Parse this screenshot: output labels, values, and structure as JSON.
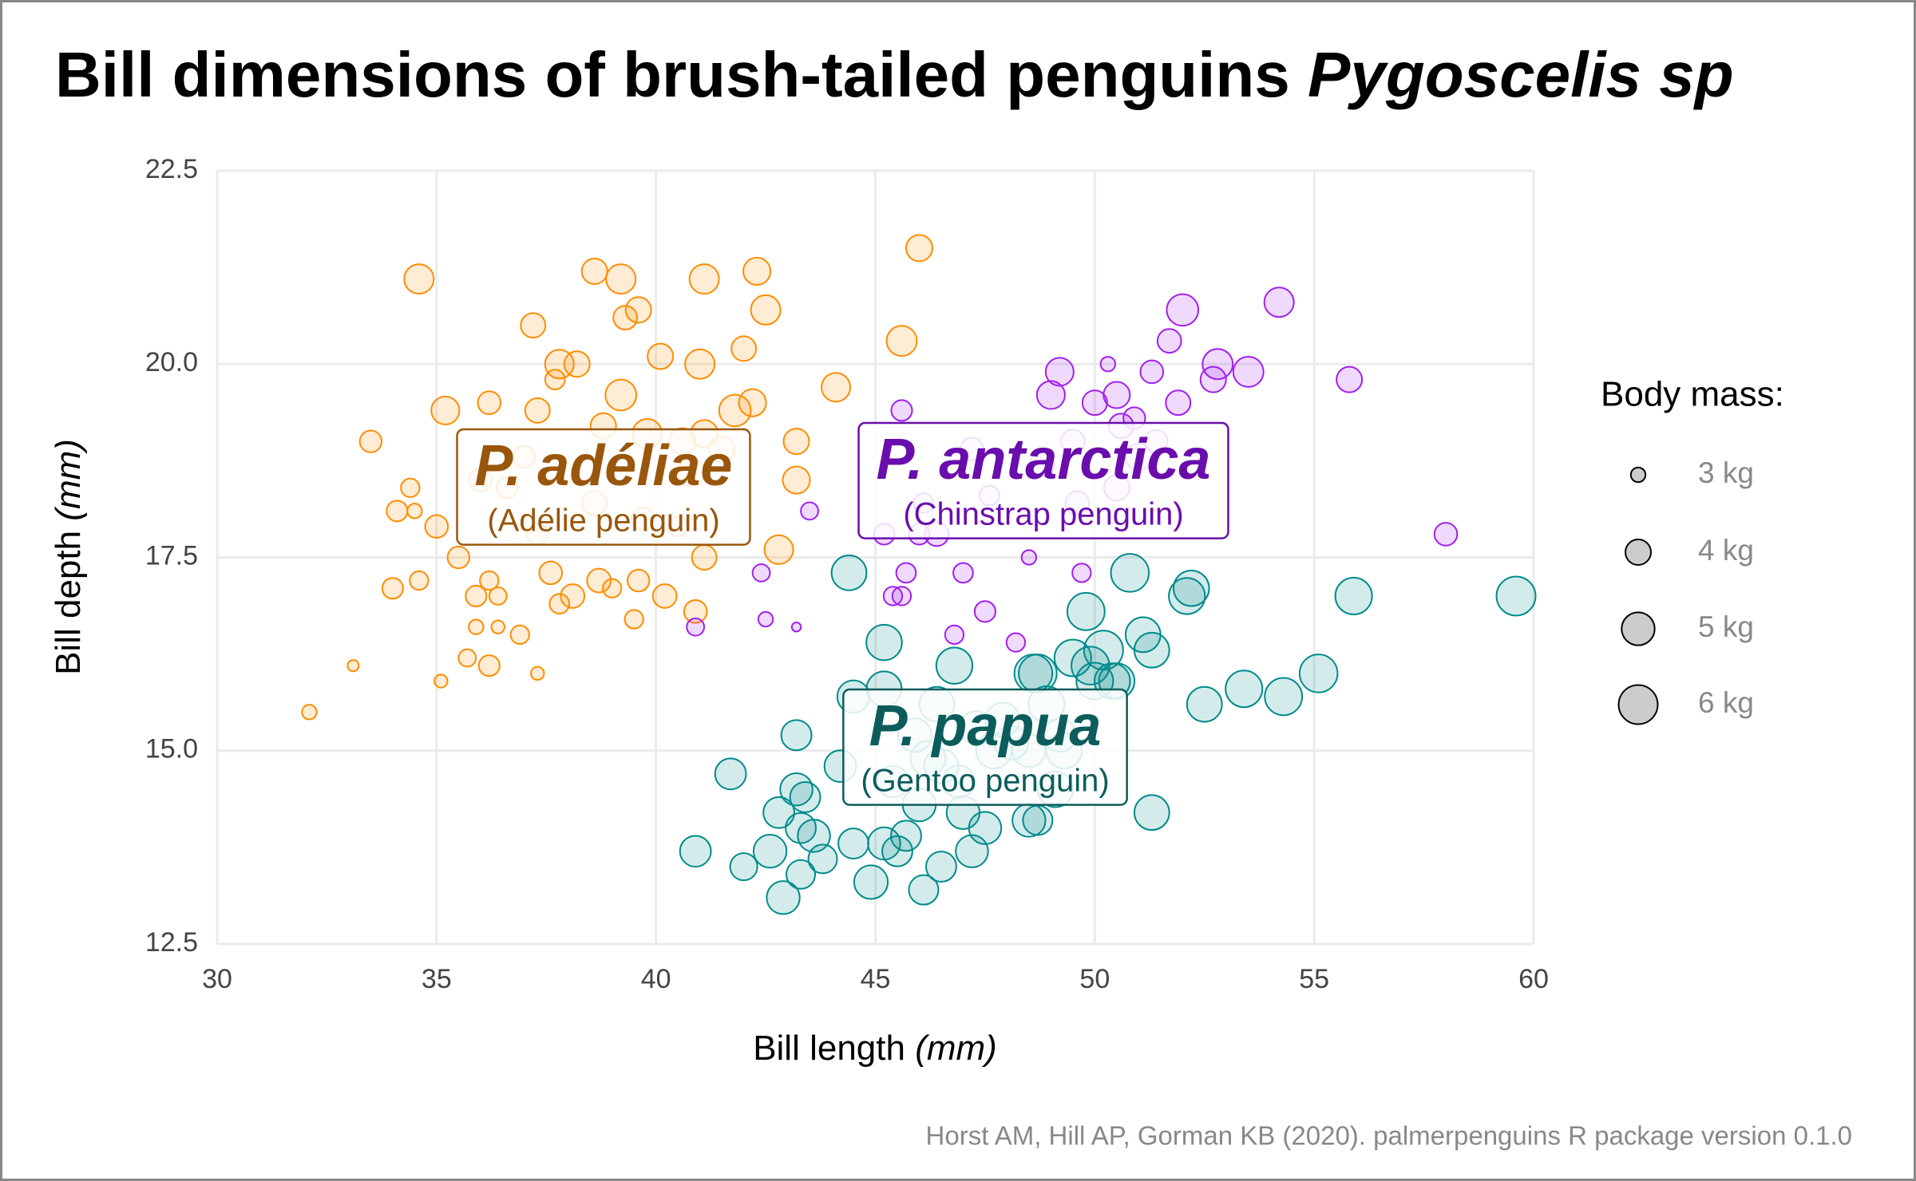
{
  "chart_data": {
    "type": "bubble",
    "title": "Bill dimensions of brush-tailed penguins",
    "title_italic": "Pygoscelis sp",
    "x_label": "Bill length",
    "x_label_unit": "(mm)",
    "y_label": "Bill depth",
    "y_label_unit": "(mm)",
    "caption": "Horst AM, Hill AP, Gorman KB (2020). palmerpenguins R package version 0.1.0",
    "xlim": [
      30,
      60
    ],
    "xticks": [
      30,
      35,
      40,
      45,
      50,
      55,
      60
    ],
    "ylim": [
      12.5,
      22.5
    ],
    "yticks": [
      12.5,
      {
        "value": 15,
        "label": "15.0"
      },
      17.5,
      {
        "value": 20,
        "label": "20.0"
      },
      22.5
    ],
    "grid": true,
    "size_legend": {
      "title": "Body mass:",
      "entries": [
        {
          "value": 3,
          "label": "3 kg"
        },
        {
          "value": 4,
          "label": "4 kg"
        },
        {
          "value": 5,
          "label": "5 kg"
        },
        {
          "value": 6,
          "label": "6 kg"
        }
      ]
    },
    "series": [
      {
        "name": "P. adéliae",
        "subtitle": "(Adélie penguin)",
        "color": "#ff8c00",
        "label_color": "#99560c",
        "x": [
          34.6,
          38.6,
          39.2,
          41.1,
          42.3,
          39.6,
          42.5,
          37.2,
          39.3,
          40.1,
          37.8,
          38.2,
          41.0,
          42.0,
          35.2,
          36.2,
          33.5,
          37.3,
          37.7,
          38.8,
          39.2,
          39.8,
          40.6,
          41.1,
          41.8,
          42.2,
          43.2,
          44.1,
          36.0,
          36.6,
          37.0,
          34.1,
          34.5,
          34.4,
          35.0,
          35.5,
          36.2,
          36.4,
          35.9,
          34.0,
          34.6,
          37.3,
          37.6,
          38.1,
          38.7,
          39.0,
          39.6,
          40.9,
          40.5,
          42.8,
          43.2,
          36.9,
          35.9,
          36.4,
          35.7,
          36.2,
          35.1,
          37.3,
          33.1,
          32.1,
          40.2,
          41.1,
          39.5,
          46.0,
          45.6,
          38.6,
          40.8,
          41.5,
          37.8,
          39.7
        ],
        "values": [
          21.1,
          21.2,
          21.1,
          21.1,
          21.2,
          20.7,
          20.7,
          20.5,
          20.6,
          20.1,
          20.0,
          20.0,
          20.0,
          20.2,
          19.4,
          19.5,
          19.0,
          19.4,
          19.8,
          19.2,
          19.6,
          19.1,
          19.0,
          19.1,
          19.4,
          19.5,
          19.0,
          19.7,
          18.5,
          18.4,
          18.8,
          18.1,
          18.1,
          18.4,
          17.9,
          17.5,
          17.2,
          17.0,
          17.0,
          17.1,
          17.2,
          17.8,
          17.3,
          17.0,
          17.2,
          17.1,
          17.2,
          16.8,
          17.9,
          17.6,
          18.5,
          16.5,
          16.6,
          16.6,
          16.2,
          16.1,
          15.9,
          16.0,
          16.1,
          15.5,
          17.0,
          17.5,
          16.7,
          21.5,
          20.3,
          18.2,
          18.6,
          18.9,
          16.9,
          18.0
        ],
        "sizes": [
          4.5,
          4.0,
          4.5,
          4.5,
          4.2,
          4.0,
          4.5,
          3.9,
          3.8,
          4.0,
          4.4,
          4.0,
          4.5,
          3.9,
          4.3,
          3.7,
          3.6,
          3.9,
          3.4,
          4.0,
          4.7,
          4.5,
          4.1,
          4.2,
          4.8,
          4.2,
          4.0,
          4.4,
          3.7,
          3.5,
          3.6,
          3.5,
          3.0,
          3.3,
          3.7,
          3.6,
          3.3,
          3.2,
          3.5,
          3.5,
          3.3,
          3.5,
          3.7,
          3.8,
          3.8,
          3.3,
          3.6,
          3.7,
          3.4,
          4.4,
          4.2,
          3.3,
          3.0,
          2.9,
          3.2,
          3.5,
          2.9,
          2.9,
          2.8,
          3.0,
          3.8,
          3.9,
          3.3,
          4.1,
          4.6,
          3.9,
          4.2,
          4.0,
          3.4,
          3.7
        ]
      },
      {
        "name": "P. antarctica",
        "subtitle": "(Chinstrap penguin)",
        "color": "#a020f0",
        "label_color": "#6a0dad",
        "x": [
          54.2,
          52.0,
          51.7,
          52.7,
          52.8,
          53.5,
          55.8,
          49.2,
          49.0,
          50.3,
          51.3,
          50.5,
          51.9,
          50.0,
          45.6,
          49.5,
          50.6,
          51.4,
          42.4,
          42.5,
          43.2,
          43.5,
          45.4,
          45.6,
          45.7,
          46.0,
          46.4,
          47.0,
          46.8,
          47.6,
          48.5,
          49.7,
          48.2,
          40.9,
          58.0,
          46.1,
          47.5,
          45.2,
          50.5,
          49.6,
          51.0,
          47.2,
          48.8,
          50.9
        ],
        "values": [
          20.8,
          20.7,
          20.3,
          19.8,
          20.0,
          19.9,
          19.8,
          19.9,
          19.6,
          20.0,
          19.9,
          19.6,
          19.5,
          19.5,
          19.4,
          19.0,
          19.2,
          19.0,
          17.3,
          16.7,
          16.6,
          18.1,
          17.0,
          17.0,
          17.3,
          17.8,
          17.8,
          17.3,
          16.5,
          18.3,
          17.5,
          17.3,
          16.4,
          16.6,
          17.8,
          18.2,
          16.8,
          17.8,
          18.4,
          18.2,
          18.8,
          18.9,
          18.7,
          19.3
        ],
        "sizes": [
          4.5,
          4.8,
          3.8,
          4.0,
          4.6,
          4.6,
          4.0,
          4.3,
          4.3,
          3.0,
          3.7,
          4.1,
          3.9,
          3.9,
          3.5,
          3.8,
          3.9,
          3.7,
          3.2,
          3.0,
          2.7,
          3.2,
          3.3,
          3.3,
          3.4,
          3.5,
          3.8,
          3.4,
          3.3,
          3.4,
          3.0,
          3.3,
          3.3,
          3.2,
          3.7,
          3.4,
          3.5,
          3.5,
          4.0,
          3.8,
          4.1,
          3.7,
          3.9,
          3.6
        ]
      },
      {
        "name": "P. papua",
        "subtitle": "(Gentoo penguin)",
        "color": "#008b8b",
        "label_color": "#0d5c5c",
        "x": [
          59.6,
          55.9,
          55.1,
          54.3,
          53.4,
          52.5,
          52.2,
          52.1,
          51.1,
          50.8,
          51.3,
          49.8,
          50.2,
          48.7,
          49.9,
          50.4,
          48.5,
          47.3,
          46.8,
          45.2,
          44.4,
          44.9,
          45.2,
          45.4,
          45.5,
          45.7,
          46.1,
          46.5,
          47.2,
          47.5,
          48.5,
          49.1,
          51.3,
          42.0,
          40.9,
          42.6,
          42.8,
          43.2,
          43.3,
          43.4,
          43.6,
          43.3,
          42.9,
          43.8,
          41.7,
          43.2,
          44.5,
          44.5,
          47.7,
          46.9,
          48.1,
          48.7,
          50.5,
          49.2,
          48.6,
          46.2,
          45.2,
          46.5,
          46.4,
          49.5,
          48.9,
          47.9,
          46.0,
          44.2,
          50.0,
          49.3,
          47.0,
          45.9
        ],
        "values": [
          17.0,
          17.0,
          16.0,
          15.7,
          15.8,
          15.6,
          17.1,
          17.0,
          16.5,
          17.3,
          16.3,
          16.8,
          16.3,
          16.0,
          16.1,
          15.9,
          15.0,
          15.3,
          16.1,
          16.4,
          17.3,
          13.3,
          13.8,
          14.6,
          13.7,
          13.9,
          13.2,
          13.5,
          13.7,
          14.0,
          14.1,
          14.5,
          14.2,
          13.5,
          13.7,
          13.7,
          14.2,
          14.5,
          14.0,
          14.4,
          13.9,
          13.4,
          13.1,
          13.6,
          14.7,
          15.2,
          15.7,
          13.8,
          15.0,
          14.6,
          15.1,
          14.1,
          15.9,
          15.2,
          16.0,
          14.9,
          15.8,
          14.8,
          15.6,
          16.2,
          15.6,
          15.4,
          14.3,
          14.8,
          15.9,
          15.0,
          14.2,
          15.2
        ],
        "sizes": [
          6.0,
          5.6,
          5.8,
          5.7,
          5.6,
          5.3,
          5.4,
          5.5,
          5.3,
          5.8,
          5.3,
          5.7,
          6.0,
          5.8,
          5.8,
          5.4,
          5.0,
          5.0,
          5.5,
          5.4,
          5.3,
          5.1,
          4.9,
          4.8,
          4.6,
          4.6,
          4.5,
          4.6,
          4.9,
          4.9,
          5.0,
          5.4,
          5.3,
          4.2,
          4.7,
          5.0,
          4.7,
          4.9,
          4.6,
          4.6,
          4.9,
          4.4,
          5.0,
          4.4,
          4.7,
          4.6,
          4.9,
          4.6,
          5.4,
          4.9,
          5.1,
          4.5,
          5.4,
          5.0,
          5.8,
          5.3,
          5.3,
          5.2,
          5.3,
          5.6,
          5.5,
          5.2,
          5.0,
          4.8,
          5.6,
          5.4,
          5.0,
          5.1
        ]
      }
    ]
  }
}
